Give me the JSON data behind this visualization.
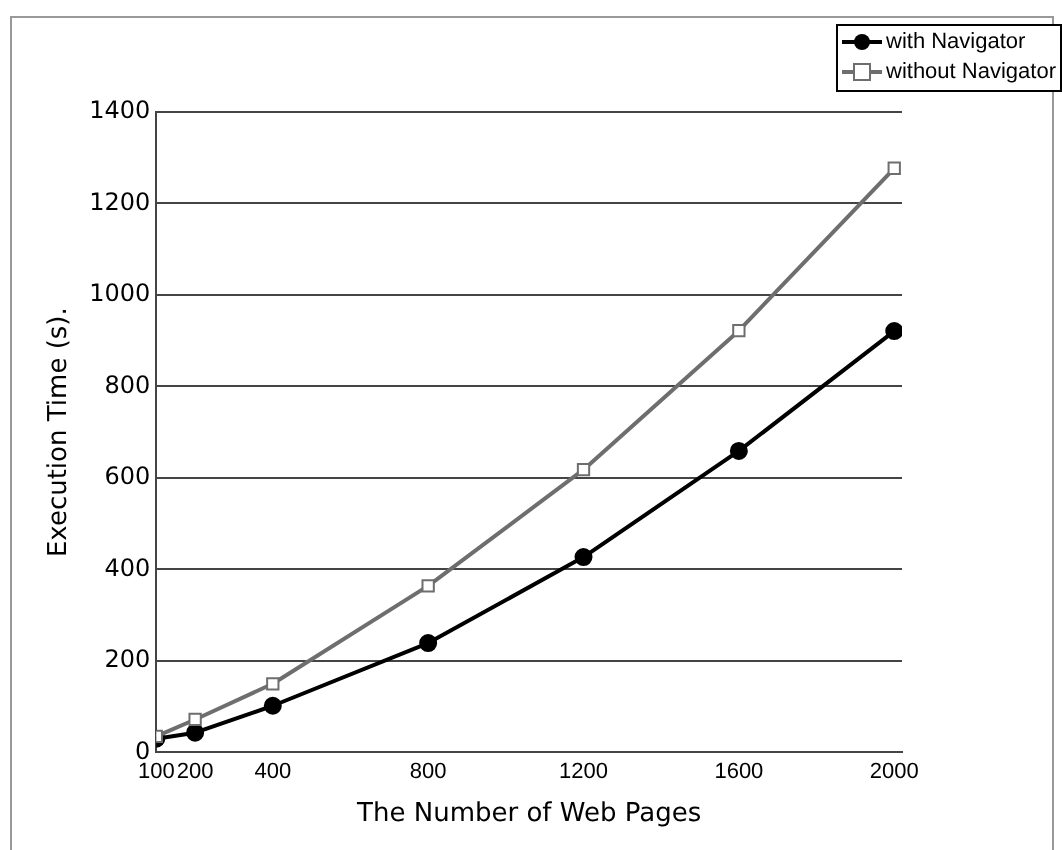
{
  "chart_data": {
    "type": "line",
    "xlabel": "The Number of Web Pages",
    "ylabel": "Execution Time (s).",
    "x": [
      100,
      200,
      400,
      800,
      1200,
      1600,
      2000
    ],
    "series": [
      {
        "name": "with Navigator",
        "color": "#000000",
        "marker": "circle",
        "values": [
          30,
          43,
          102,
          239,
          427,
          659,
          921
        ]
      },
      {
        "name": "without Navigator",
        "color": "#6e6e6e",
        "marker": "square",
        "values": [
          35,
          72,
          150,
          364,
          618,
          922,
          1277
        ]
      }
    ],
    "xlim": [
      100,
      2020
    ],
    "xticks": [
      100,
      200,
      400,
      800,
      1200,
      1600,
      2000
    ],
    "ylim": [
      0,
      1400
    ],
    "yticks": [
      0,
      200,
      400,
      600,
      800,
      1000,
      1200,
      1400
    ],
    "grid": "y",
    "legend": "top right",
    "line_style": "solid"
  }
}
